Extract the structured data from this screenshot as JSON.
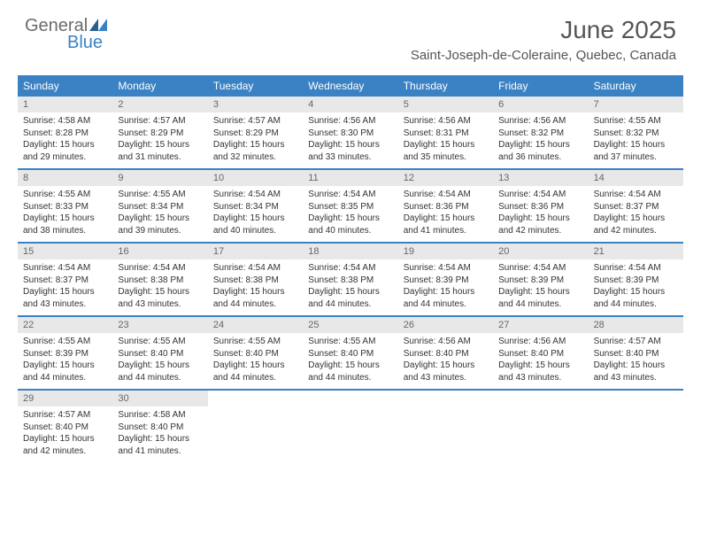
{
  "logo": {
    "part1": "General",
    "part2": "Blue"
  },
  "title": "June 2025",
  "location": "Saint-Joseph-de-Coleraine, Quebec, Canada",
  "colors": {
    "header_bg": "#3b82c4",
    "daynum_bg": "#e8e8e8",
    "text": "#333333",
    "title_text": "#555555"
  },
  "day_names": [
    "Sunday",
    "Monday",
    "Tuesday",
    "Wednesday",
    "Thursday",
    "Friday",
    "Saturday"
  ],
  "days": [
    {
      "n": 1,
      "sr": "4:58 AM",
      "ss": "8:28 PM",
      "dl": "15 hours and 29 minutes."
    },
    {
      "n": 2,
      "sr": "4:57 AM",
      "ss": "8:29 PM",
      "dl": "15 hours and 31 minutes."
    },
    {
      "n": 3,
      "sr": "4:57 AM",
      "ss": "8:29 PM",
      "dl": "15 hours and 32 minutes."
    },
    {
      "n": 4,
      "sr": "4:56 AM",
      "ss": "8:30 PM",
      "dl": "15 hours and 33 minutes."
    },
    {
      "n": 5,
      "sr": "4:56 AM",
      "ss": "8:31 PM",
      "dl": "15 hours and 35 minutes."
    },
    {
      "n": 6,
      "sr": "4:56 AM",
      "ss": "8:32 PM",
      "dl": "15 hours and 36 minutes."
    },
    {
      "n": 7,
      "sr": "4:55 AM",
      "ss": "8:32 PM",
      "dl": "15 hours and 37 minutes."
    },
    {
      "n": 8,
      "sr": "4:55 AM",
      "ss": "8:33 PM",
      "dl": "15 hours and 38 minutes."
    },
    {
      "n": 9,
      "sr": "4:55 AM",
      "ss": "8:34 PM",
      "dl": "15 hours and 39 minutes."
    },
    {
      "n": 10,
      "sr": "4:54 AM",
      "ss": "8:34 PM",
      "dl": "15 hours and 40 minutes."
    },
    {
      "n": 11,
      "sr": "4:54 AM",
      "ss": "8:35 PM",
      "dl": "15 hours and 40 minutes."
    },
    {
      "n": 12,
      "sr": "4:54 AM",
      "ss": "8:36 PM",
      "dl": "15 hours and 41 minutes."
    },
    {
      "n": 13,
      "sr": "4:54 AM",
      "ss": "8:36 PM",
      "dl": "15 hours and 42 minutes."
    },
    {
      "n": 14,
      "sr": "4:54 AM",
      "ss": "8:37 PM",
      "dl": "15 hours and 42 minutes."
    },
    {
      "n": 15,
      "sr": "4:54 AM",
      "ss": "8:37 PM",
      "dl": "15 hours and 43 minutes."
    },
    {
      "n": 16,
      "sr": "4:54 AM",
      "ss": "8:38 PM",
      "dl": "15 hours and 43 minutes."
    },
    {
      "n": 17,
      "sr": "4:54 AM",
      "ss": "8:38 PM",
      "dl": "15 hours and 44 minutes."
    },
    {
      "n": 18,
      "sr": "4:54 AM",
      "ss": "8:38 PM",
      "dl": "15 hours and 44 minutes."
    },
    {
      "n": 19,
      "sr": "4:54 AM",
      "ss": "8:39 PM",
      "dl": "15 hours and 44 minutes."
    },
    {
      "n": 20,
      "sr": "4:54 AM",
      "ss": "8:39 PM",
      "dl": "15 hours and 44 minutes."
    },
    {
      "n": 21,
      "sr": "4:54 AM",
      "ss": "8:39 PM",
      "dl": "15 hours and 44 minutes."
    },
    {
      "n": 22,
      "sr": "4:55 AM",
      "ss": "8:39 PM",
      "dl": "15 hours and 44 minutes."
    },
    {
      "n": 23,
      "sr": "4:55 AM",
      "ss": "8:40 PM",
      "dl": "15 hours and 44 minutes."
    },
    {
      "n": 24,
      "sr": "4:55 AM",
      "ss": "8:40 PM",
      "dl": "15 hours and 44 minutes."
    },
    {
      "n": 25,
      "sr": "4:55 AM",
      "ss": "8:40 PM",
      "dl": "15 hours and 44 minutes."
    },
    {
      "n": 26,
      "sr": "4:56 AM",
      "ss": "8:40 PM",
      "dl": "15 hours and 43 minutes."
    },
    {
      "n": 27,
      "sr": "4:56 AM",
      "ss": "8:40 PM",
      "dl": "15 hours and 43 minutes."
    },
    {
      "n": 28,
      "sr": "4:57 AM",
      "ss": "8:40 PM",
      "dl": "15 hours and 43 minutes."
    },
    {
      "n": 29,
      "sr": "4:57 AM",
      "ss": "8:40 PM",
      "dl": "15 hours and 42 minutes."
    },
    {
      "n": 30,
      "sr": "4:58 AM",
      "ss": "8:40 PM",
      "dl": "15 hours and 41 minutes."
    }
  ],
  "labels": {
    "sunrise": "Sunrise:",
    "sunset": "Sunset:",
    "daylight": "Daylight:"
  }
}
